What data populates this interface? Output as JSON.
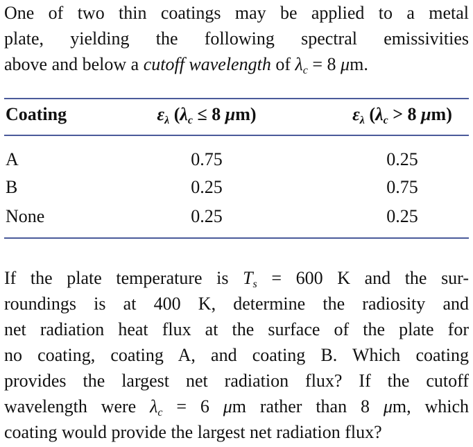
{
  "intro": {
    "lines": [
      [
        "One of two thin coatings may be applied to a metal"
      ],
      [
        "plate, yielding the following spectral emissivities"
      ],
      [
        "above and below a ",
        "cutoff wavelength",
        " of ",
        "λ",
        "c",
        " = 8 ",
        "μ",
        "m."
      ]
    ]
  },
  "table": {
    "header": [
      [
        "Coating"
      ],
      [
        "ε",
        "λ",
        " (",
        "λ",
        "c",
        " ≤ 8 ",
        "μ",
        "m)"
      ],
      [
        "ε",
        "λ",
        " (",
        "λ",
        "c",
        " > 8 ",
        "μ",
        "m)"
      ]
    ],
    "rows": [
      [
        "A",
        "0.75",
        "0.25"
      ],
      [
        "B",
        "0.25",
        "0.75"
      ],
      [
        "None",
        "0.25",
        "0.25"
      ]
    ]
  },
  "question": {
    "lines": [
      [
        "If the plate temperature is ",
        "T",
        "s",
        " = 600 K and the sur-"
      ],
      [
        "roundings is at 400 K, determine the radiosity and"
      ],
      [
        "net radiation heat flux at the surface of the plate for"
      ],
      [
        "no coating, coating A, and coating B. Which coating"
      ],
      [
        "provides the largest net radiation flux? If the cutoff"
      ],
      [
        "wavelength were ",
        "λ",
        "c",
        " = 6 ",
        "μ",
        "m rather than 8 ",
        "μ",
        "m, which"
      ],
      [
        "coating would provide the largest net radiation flux?"
      ]
    ]
  }
}
